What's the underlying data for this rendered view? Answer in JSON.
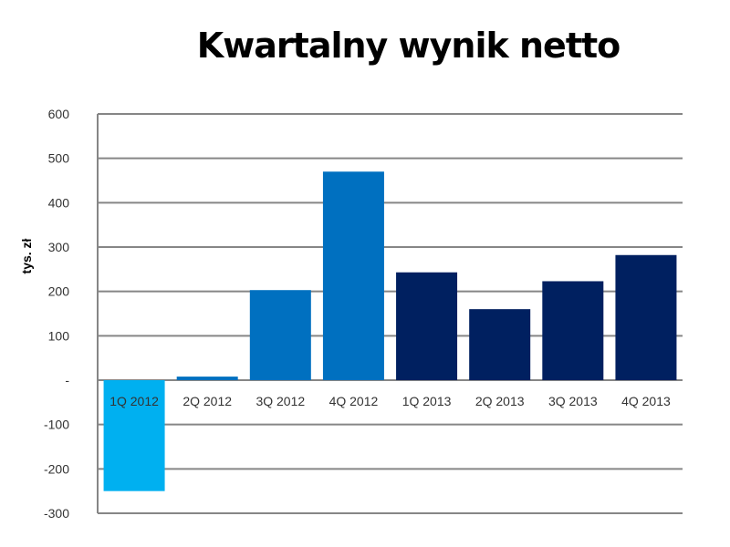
{
  "chart_data": {
    "type": "bar",
    "title": "Kwartalny wynik netto",
    "xlabel": "",
    "ylabel": "tys. zł",
    "categories": [
      "1Q 2012",
      "2Q 2012",
      "3Q 2012",
      "4Q 2012",
      "1Q 2013",
      "2Q 2013",
      "3Q 2013",
      "4Q 2013"
    ],
    "values": [
      -250,
      8,
      203,
      470,
      243,
      160,
      223,
      282
    ],
    "bar_colors": [
      "#00b0f0",
      "#0070c0",
      "#0070c0",
      "#0070c0",
      "#002060",
      "#002060",
      "#002060",
      "#002060"
    ],
    "ylim": [
      -300,
      600
    ],
    "yticks": [
      600,
      500,
      400,
      300,
      200,
      100,
      0,
      -100,
      -200,
      -300
    ],
    "ytick_labels": [
      "600",
      "500",
      "400",
      "300",
      "200",
      "100",
      "-",
      "-100",
      "-200",
      "-300"
    ],
    "grid": true,
    "gridline_color": "#868686",
    "legend": "none"
  }
}
